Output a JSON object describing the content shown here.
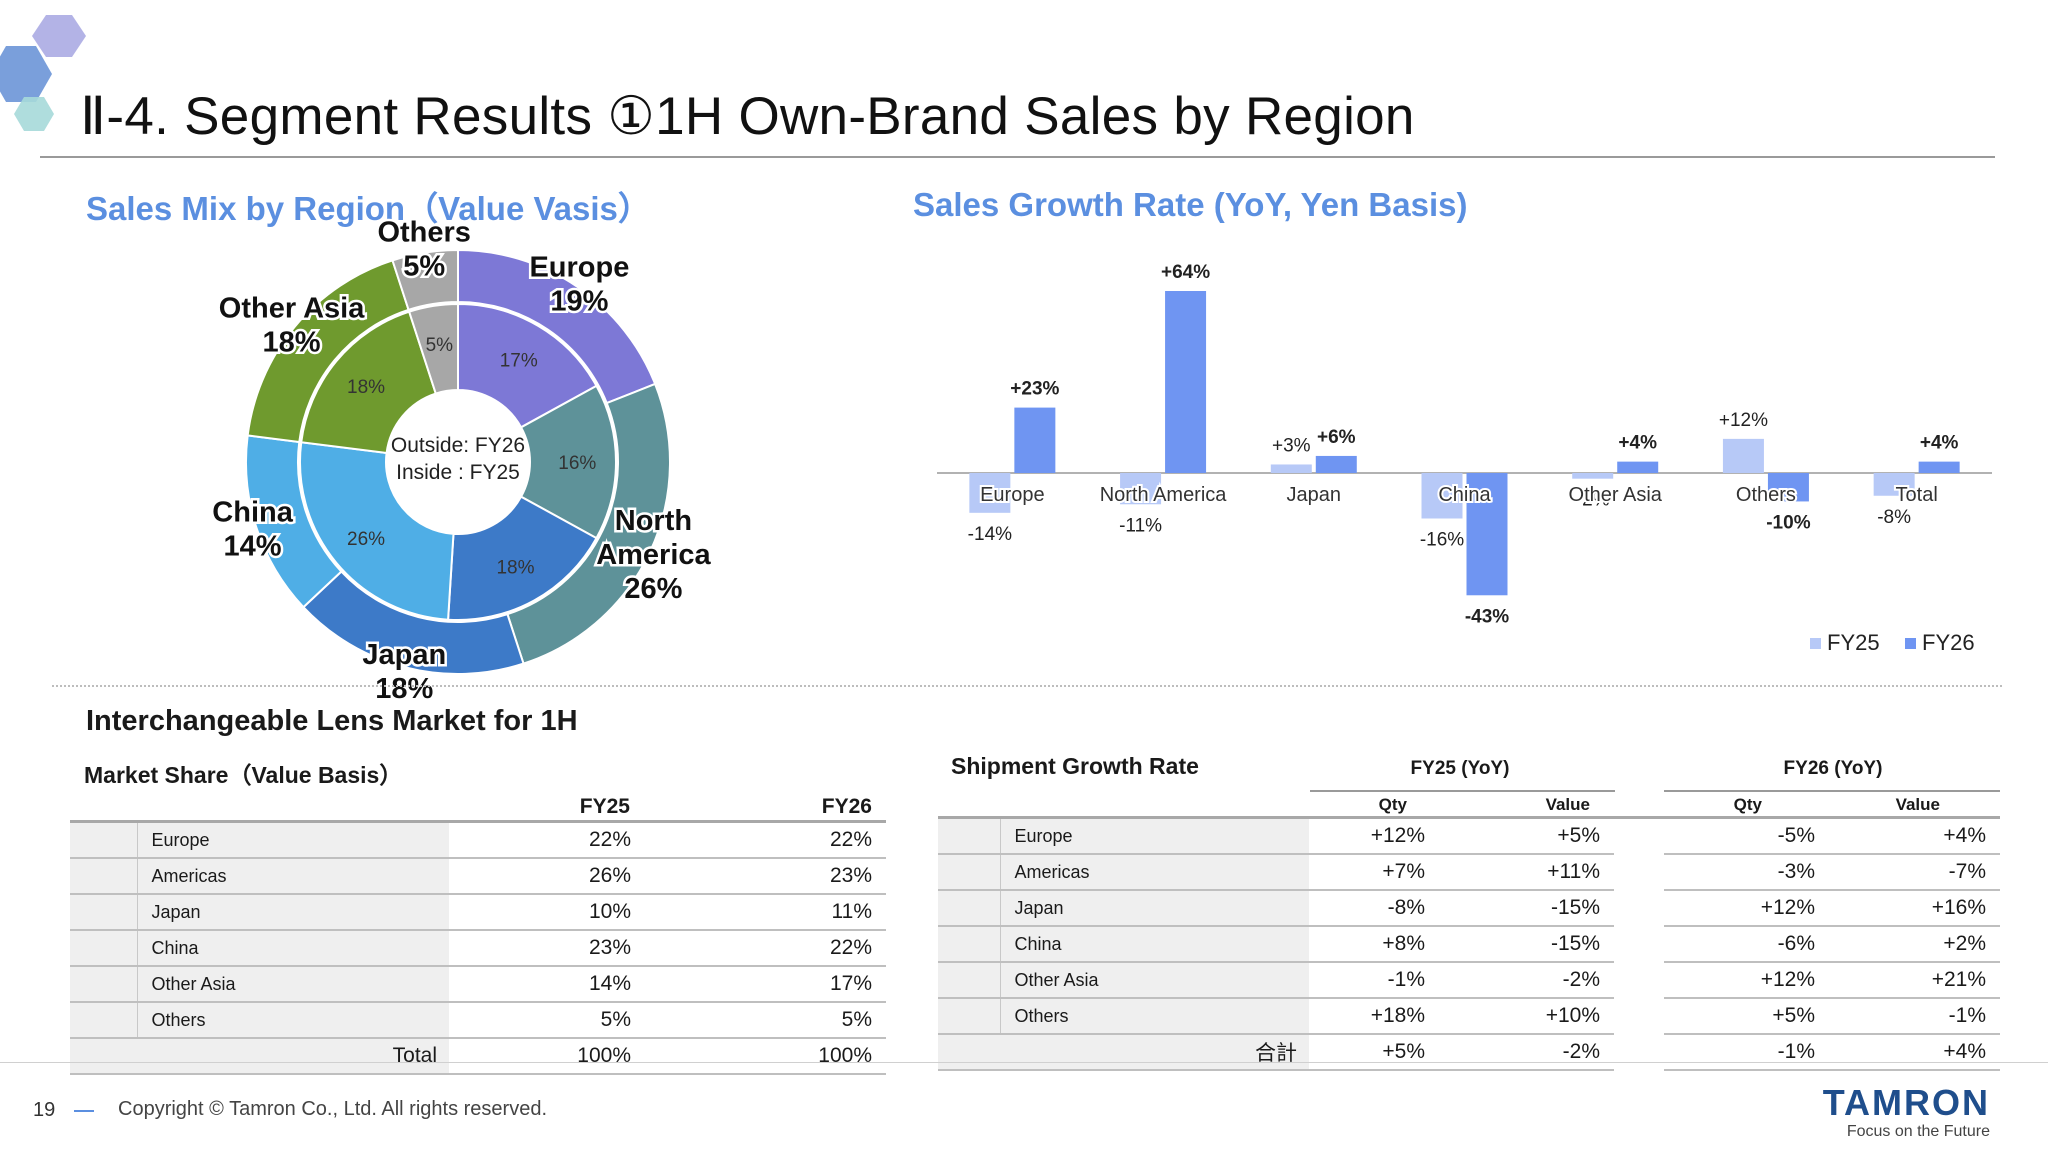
{
  "header": {
    "title": "Ⅱ-4. Segment Results ①1H Own-Brand Sales by Region"
  },
  "sections": {
    "mix_title": "Sales Mix by Region（Value Vasis）",
    "growth_title": "Sales Growth Rate (YoY, Yen Basis)"
  },
  "chart_data": [
    {
      "type": "pie",
      "title": "Sales Mix by Region（Value Vasis）",
      "center_text": [
        "Outside: FY26",
        "Inside : FY25"
      ],
      "categories": [
        "Europe",
        "North America",
        "Japan",
        "China",
        "Other Asia",
        "Others"
      ],
      "display_names": [
        "Europe",
        "North\nAmerica",
        "Japan",
        "China",
        "Other Asia",
        "Others"
      ],
      "colors": [
        "#7d78d6",
        "#5e9299",
        "#3d7ac8",
        "#4faee6",
        "#6f9a2e",
        "#a7a7a7"
      ],
      "series": [
        {
          "name": "FY26",
          "ring": "outside",
          "values": [
            19,
            26,
            18,
            14,
            18,
            5
          ],
          "labels": [
            "19%",
            "26%",
            "18%",
            "14%",
            "18%",
            "5%"
          ]
        },
        {
          "name": "FY25",
          "ring": "inside",
          "values": [
            17,
            16,
            18,
            26,
            18,
            5
          ],
          "labels": [
            "17%",
            "16%",
            "18%",
            "26%",
            "18%",
            "5%"
          ]
        }
      ]
    },
    {
      "type": "bar",
      "title": "Sales Growth Rate (YoY, Yen Basis)",
      "categories": [
        "Europe",
        "North America",
        "Japan",
        "China",
        "Other Asia",
        "Others",
        "Total"
      ],
      "series": [
        {
          "name": "FY25",
          "color": "#b7c9f7",
          "values": [
            -14,
            -11,
            3,
            -16,
            -2,
            12,
            -8
          ],
          "labels": [
            "-14%",
            "-11%",
            "+3%",
            "-16%",
            "-2%",
            "+12%",
            "-8%"
          ]
        },
        {
          "name": "FY26",
          "color": "#6f95f2",
          "values": [
            23,
            64,
            6,
            -43,
            4,
            -10,
            4
          ],
          "labels": [
            "+23%",
            "+64%",
            "+6%",
            "-43%",
            "+4%",
            "-10%",
            "+4%"
          ]
        }
      ],
      "ylim": [
        -45,
        66
      ],
      "legend": "bottom-right",
      "grid": false
    }
  ],
  "market": {
    "title": "Interchangeable Lens Market for 1H",
    "share": {
      "title": "Market Share（Value Basis）",
      "columns": [
        "FY25",
        "FY26"
      ],
      "rows": [
        {
          "label": "Europe",
          "fy25": "22%",
          "fy26": "22%"
        },
        {
          "label": "Americas",
          "fy25": "26%",
          "fy26": "23%"
        },
        {
          "label": "Japan",
          "fy25": "10%",
          "fy26": "11%"
        },
        {
          "label": "China",
          "fy25": "23%",
          "fy26": "22%"
        },
        {
          "label": "Other Asia",
          "fy25": "14%",
          "fy26": "17%"
        },
        {
          "label": "Others",
          "fy25": "5%",
          "fy26": "5%"
        }
      ],
      "total": {
        "label": "Total",
        "fy25": "100%",
        "fy26": "100%"
      }
    },
    "shipment": {
      "title": "Shipment Growth Rate",
      "group1": "FY25 (YoY)",
      "group2": "FY26 (YoY)",
      "qty": "Qty",
      "value": "Value",
      "rows": [
        {
          "label": "Europe",
          "q25": "+12%",
          "v25": "+5%",
          "q26": "-5%",
          "v26": "+4%"
        },
        {
          "label": "Americas",
          "q25": "+7%",
          "v25": "+11%",
          "q26": "-3%",
          "v26": "-7%"
        },
        {
          "label": "Japan",
          "q25": "-8%",
          "v25": "-15%",
          "q26": "+12%",
          "v26": "+16%"
        },
        {
          "label": "China",
          "q25": "+8%",
          "v25": "-15%",
          "q26": "-6%",
          "v26": "+2%"
        },
        {
          "label": "Other Asia",
          "q25": "-1%",
          "v25": "-2%",
          "q26": "+12%",
          "v26": "+21%"
        },
        {
          "label": "Others",
          "q25": "+18%",
          "v25": "+10%",
          "q26": "+5%",
          "v26": "-1%"
        }
      ],
      "total": {
        "label": "合計",
        "q25": "+5%",
        "v25": "-2%",
        "q26": "-1%",
        "v26": "+4%"
      }
    }
  },
  "footer": {
    "page": "19",
    "copyright": "Copyright © Tamron Co., Ltd. All rights reserved.",
    "logo": "TAMRON",
    "tagline": "Focus on the Future"
  }
}
